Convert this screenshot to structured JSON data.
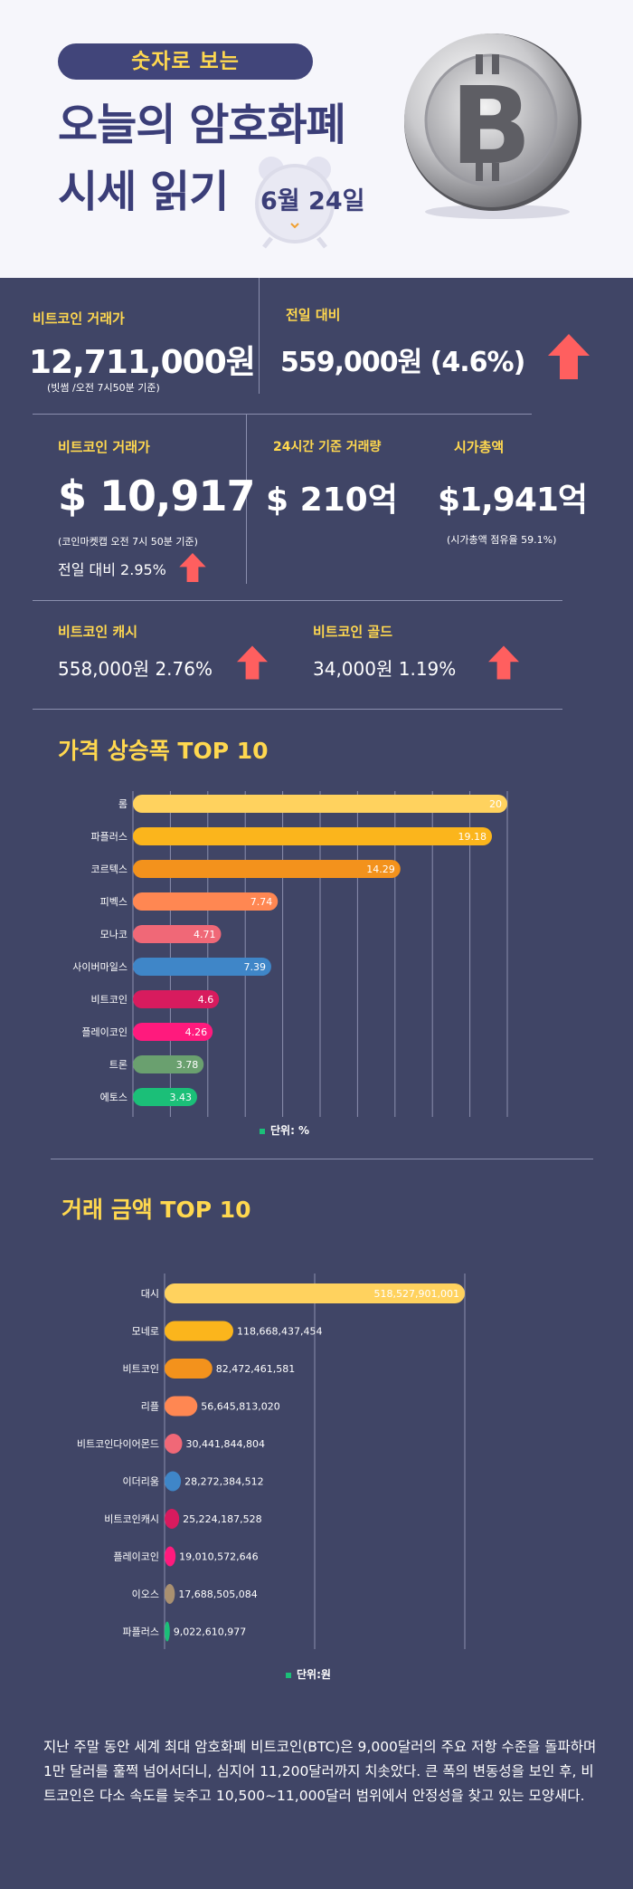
{
  "header": {
    "pill": "숫자로 보는",
    "title_line1": "오늘의 암호화폐",
    "title_line2": "시세 읽기",
    "date": "6월 24일"
  },
  "krw_price": {
    "label": "비트코인 거래가",
    "value": "12,711,000원",
    "note": "(빗썸 /오전 7시50분 기준)"
  },
  "prev_day": {
    "label": "전일 대비",
    "value": "559,000원 (4.6%)"
  },
  "usd_price": {
    "label": "비트코인 거래가",
    "value": "$ 10,917",
    "note": "(코인마켓캡 오전 7시 50분 기준)",
    "change": "전일 대비 2.95%"
  },
  "volume_24h": {
    "label": "24시간 기준 거래량",
    "value": "$ 210억"
  },
  "market_cap": {
    "label": "시가총액",
    "value": "$1,941억",
    "note": "(시가총액 점유율 59.1%)"
  },
  "bch": {
    "label": "비트코인 캐시",
    "value": "558,000원  2.76%"
  },
  "btg": {
    "label": "비트코인 골드",
    "value": "34,000원   1.19%"
  },
  "chart_data": [
    {
      "type": "bar",
      "orientation": "horizontal",
      "title": "가격 상승폭 TOP 10",
      "categories": [
        "롬",
        "파플러스",
        "코르텍스",
        "피벡스",
        "모나코",
        "사이버마일스",
        "비트코인",
        "플레이코인",
        "트론",
        "에토스"
      ],
      "values": [
        20,
        19.18,
        14.29,
        7.74,
        4.71,
        7.39,
        4.6,
        4.26,
        3.78,
        3.43
      ],
      "labels": [
        "20",
        "19.18",
        "14.29",
        "7.74",
        "4.71",
        "7.39",
        "4.6",
        "4.26",
        "3.78",
        "3.43"
      ],
      "colors": [
        "#ffd25e",
        "#fbb51c",
        "#f3921c",
        "#ff8752",
        "#f06877",
        "#3f86c8",
        "#d81b5e",
        "#ff1a7d",
        "#6aa06f",
        "#1bbf78"
      ],
      "unit_label": "단위: %",
      "xlim": [
        0,
        20
      ]
    },
    {
      "type": "bar",
      "orientation": "horizontal",
      "title": "거래 금액 TOP 10",
      "categories": [
        "대시",
        "모네로",
        "비트코인",
        "리플",
        "비트코인다이어몬드",
        "이더리움",
        "비트코인캐시",
        "플레이코인",
        "이오스",
        "파플러스"
      ],
      "values": [
        518527901001,
        118668437454,
        82472461581,
        56645813020,
        30441844804,
        28272384512,
        25224187528,
        19010572646,
        17688505084,
        9022610977
      ],
      "labels": [
        "518,527,901,001",
        "118,668,437,454",
        "82,472,461,581",
        "56,645,813,020",
        "30,441,844,804",
        "28,272,384,512",
        "25,224,187,528",
        "19,010,572,646",
        "17,688,505,084",
        "9,022,610,977"
      ],
      "colors": [
        "#ffd25e",
        "#fbb51c",
        "#f3921c",
        "#ff8752",
        "#f06877",
        "#3f86c8",
        "#d81b5e",
        "#ff1a7d",
        "#a99070",
        "#1bbf78"
      ],
      "unit_label": "단위:원"
    }
  ],
  "description": "지난 주말 동안 세계 최대 암호화폐 비트코인(BTC)은 9,000달러의 주요 저항 수준을 돌파하며 1만 달러를 훌쩍 넘어서더니, 심지어 11,200달러까지 치솟았다. 큰 폭의 변동성을 보인 후, 비트코인은 다소 속도를 늦추고 10,500~11,000달러 범위에서 안정성을 찾고 있는 모양새다."
}
